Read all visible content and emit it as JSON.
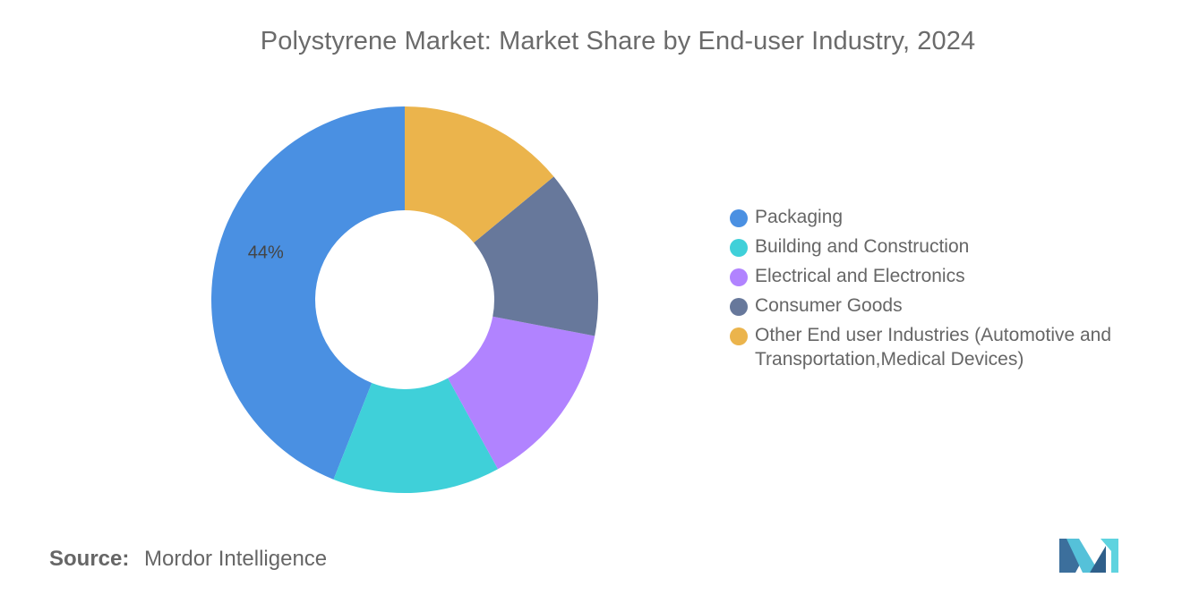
{
  "chart_data": {
    "type": "pie",
    "title": "Polystyrene Market: Market Share by End-user Industry, 2024",
    "donut": true,
    "categories": [
      "Packaging",
      "Building and Construction",
      "Electrical and Electronics",
      "Consumer Goods",
      "Other End user Industries (Automotive and Transportation,Medical Devices)"
    ],
    "values": [
      44,
      14,
      14,
      14,
      14
    ],
    "data_labels": [
      "44%",
      "",
      "",
      "",
      ""
    ],
    "colors": [
      "#4a90e2",
      "#3fd0d9",
      "#b183ff",
      "#67789b",
      "#ebb44c"
    ],
    "start_angle_deg": 0,
    "direction": "counterclockwise",
    "legend_position": "right"
  },
  "legend": {
    "items": [
      {
        "label": "Packaging",
        "color": "#4a90e2"
      },
      {
        "label": "Building and Construction",
        "color": "#3fd0d9"
      },
      {
        "label": "Electrical and Electronics",
        "color": "#b183ff"
      },
      {
        "label": "Consumer Goods",
        "color": "#67789b"
      },
      {
        "label": "Other End user Industries (Automotive and Transportation,Medical Devices)",
        "color": "#ebb44c"
      }
    ]
  },
  "footer": {
    "source_label": "Source:",
    "source_value": "Mordor Intelligence",
    "logo_icon": "mordor-intelligence-logo-icon"
  }
}
